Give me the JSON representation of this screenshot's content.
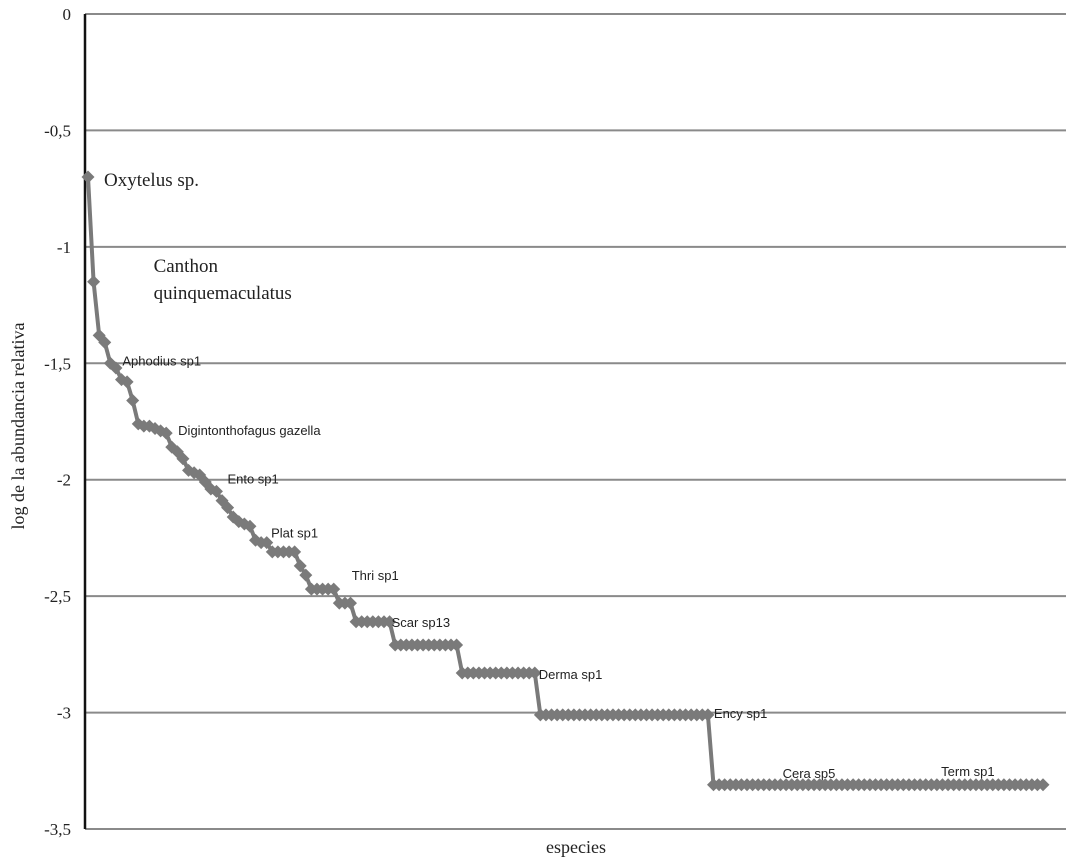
{
  "chart_data": {
    "type": "line",
    "title": "",
    "xlabel": "especies",
    "ylabel": "log de la abundancia relativa",
    "ylim": [
      -3.5,
      0
    ],
    "yticks": [
      0,
      -0.5,
      -1,
      -1.5,
      -2,
      -2.5,
      -3,
      -3.5
    ],
    "ytick_labels": [
      "0",
      "-0,5",
      "-1",
      "-1,5",
      "-2",
      "-2,5",
      "-3",
      "-3,5"
    ],
    "grid": true,
    "x_tick_labels": false,
    "series_color": "#7a7a7a",
    "series": [
      {
        "values": [
          -0.7,
          -1.15,
          -1.38,
          -1.41,
          -1.5,
          -1.52,
          -1.57,
          -1.58,
          -1.66,
          -1.76,
          -1.77,
          -1.77,
          -1.78,
          -1.79,
          -1.8,
          -1.86,
          -1.88,
          -1.91,
          -1.96,
          -1.97,
          -1.98,
          -2.01,
          -2.04,
          -2.05,
          -2.09,
          -2.12,
          -2.16,
          -2.18,
          -2.19,
          -2.2,
          -2.26,
          -2.27,
          -2.27,
          -2.31,
          -2.31,
          -2.31,
          -2.31,
          -2.31,
          -2.37,
          -2.41,
          -2.47,
          -2.47,
          -2.47,
          -2.47,
          -2.47,
          -2.53,
          -2.53,
          -2.53,
          -2.61,
          -2.61,
          -2.61,
          -2.61,
          -2.61,
          -2.61,
          -2.61,
          -2.71,
          -2.71,
          -2.71,
          -2.71,
          -2.71,
          -2.71,
          -2.71,
          -2.71,
          -2.71,
          -2.71,
          -2.71,
          -2.71,
          -2.83,
          -2.83,
          -2.83,
          -2.83,
          -2.83,
          -2.83,
          -2.83,
          -2.83,
          -2.83,
          -2.83,
          -2.83,
          -2.83,
          -2.83,
          -2.83,
          -3.01,
          -3.01,
          -3.01,
          -3.01,
          -3.01,
          -3.01,
          -3.01,
          -3.01,
          -3.01,
          -3.01,
          -3.01,
          -3.01,
          -3.01,
          -3.01,
          -3.01,
          -3.01,
          -3.01,
          -3.01,
          -3.01,
          -3.01,
          -3.01,
          -3.01,
          -3.01,
          -3.01,
          -3.01,
          -3.01,
          -3.01,
          -3.01,
          -3.01,
          -3.01,
          -3.01,
          -3.31,
          -3.31,
          -3.31,
          -3.31,
          -3.31,
          -3.31,
          -3.31,
          -3.31,
          -3.31,
          -3.31,
          -3.31,
          -3.31,
          -3.31,
          -3.31,
          -3.31,
          -3.31,
          -3.31,
          -3.31,
          -3.31,
          -3.31,
          -3.31,
          -3.31,
          -3.31,
          -3.31,
          -3.31,
          -3.31,
          -3.31,
          -3.31,
          -3.31,
          -3.31,
          -3.31,
          -3.31,
          -3.31,
          -3.31,
          -3.31,
          -3.31,
          -3.31,
          -3.31,
          -3.31,
          -3.31,
          -3.31,
          -3.31,
          -3.31,
          -3.31,
          -3.31,
          -3.31,
          -3.31,
          -3.31,
          -3.31,
          -3.31,
          -3.31,
          -3.31,
          -3.31,
          -3.31,
          -3.31,
          -3.31,
          -3.31,
          -3.31,
          -3.31,
          -3.31
        ]
      }
    ],
    "annotations": [
      {
        "text": "Oxytelus sp.",
        "index": 0,
        "style": "serif"
      },
      {
        "text": "Canthon",
        "index": 1,
        "style": "serif",
        "line": 1
      },
      {
        "text": "quinquemaculatus",
        "index": 1,
        "style": "serif",
        "line": 2
      },
      {
        "text": "Aphodius sp1",
        "index": 4,
        "style": "sans"
      },
      {
        "text": "Digintonthofagus gazella",
        "index": 14,
        "style": "sans"
      },
      {
        "text": "Ento sp1",
        "index": 23,
        "style": "sans"
      },
      {
        "text": "Plat sp1",
        "index": 31,
        "style": "sans"
      },
      {
        "text": "Thri sp1",
        "index": 44,
        "style": "sans"
      },
      {
        "text": "Scar sp13",
        "index": 54,
        "style": "sans"
      },
      {
        "text": "Derma sp1",
        "index": 80,
        "style": "sans"
      },
      {
        "text": "Ency sp1",
        "index": 111,
        "style": "sans"
      },
      {
        "text": "Cera sp5",
        "index": 119,
        "style": "sans"
      },
      {
        "text": "Term sp1",
        "index": 161,
        "style": "sans"
      }
    ]
  }
}
